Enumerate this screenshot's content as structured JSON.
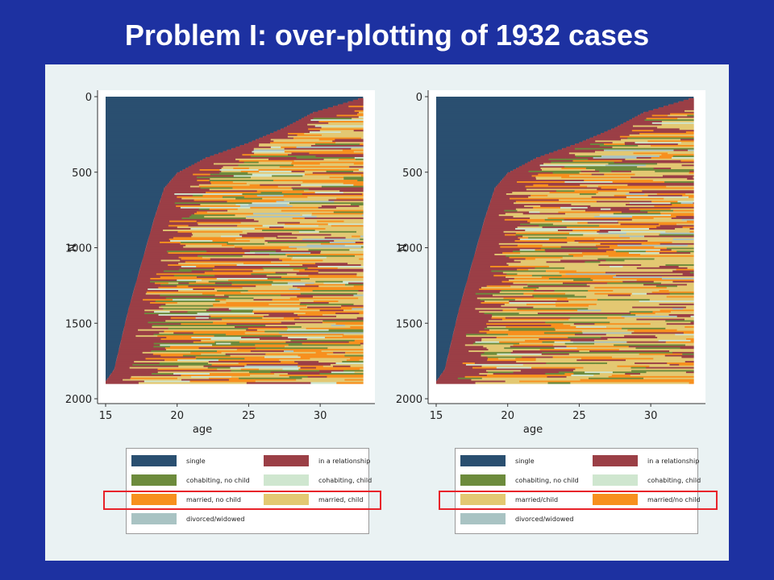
{
  "slide": {
    "title": "Problem I: over-plotting of 1932 cases"
  },
  "colors": {
    "background": "#1d31a1",
    "panel": "#eaf2f3",
    "highlight": "#e8232a",
    "single": "#2a4f70",
    "in_a_relationship": "#9b3f46",
    "cohabiting_no_child": "#6d8b3c",
    "cohabiting_child": "#cfe6cf",
    "married_no_child": "#f7901e",
    "married_child": "#e3c872",
    "divorced_widowed": "#a9c3c3"
  },
  "chart_data": [
    {
      "type": "heatmap",
      "description_of_marks": "sequence index plot",
      "xlabel": "age",
      "ylabel": "N",
      "x_ticks": [
        15,
        20,
        25,
        30
      ],
      "y_ticks": [
        0,
        500,
        1000,
        1500,
        2000
      ],
      "xlim": [
        15,
        33
      ],
      "ylim": [
        0,
        1900
      ],
      "n_cases": 1932,
      "single_boundary": {
        "y": [
          0,
          100,
          200,
          300,
          400,
          500,
          600,
          800,
          1000,
          1200,
          1400,
          1600,
          1800,
          1880
        ],
        "age_end": [
          33,
          29.5,
          27.5,
          25,
          22,
          20,
          19.1,
          18.4,
          17.8,
          17.2,
          16.6,
          16.1,
          15.6,
          15
        ]
      },
      "legend": [
        {
          "label": "single",
          "state": "single"
        },
        {
          "label": "in a relationship",
          "state": "in_a_relationship"
        },
        {
          "label": "cohabiting, no child",
          "state": "cohabiting_no_child"
        },
        {
          "label": "cohabiting, child",
          "state": "cohabiting_child"
        },
        {
          "label": "married, no child",
          "state": "married_no_child"
        },
        {
          "label": "married, child",
          "state": "married_child"
        },
        {
          "label": "divorced/widowed",
          "state": "divorced_widowed"
        }
      ]
    },
    {
      "type": "heatmap",
      "description_of_marks": "sequence index plot",
      "xlabel": "age",
      "ylabel": "N",
      "x_ticks": [
        15,
        20,
        25,
        30
      ],
      "y_ticks": [
        0,
        500,
        1000,
        1500,
        2000
      ],
      "xlim": [
        15,
        33
      ],
      "ylim": [
        0,
        1900
      ],
      "n_cases": 1932,
      "single_boundary": {
        "y": [
          0,
          100,
          200,
          300,
          400,
          500,
          600,
          800,
          1000,
          1200,
          1400,
          1600,
          1800,
          1880
        ],
        "age_end": [
          33,
          29.5,
          27.5,
          25,
          22,
          20,
          19.1,
          18.4,
          17.8,
          17.2,
          16.6,
          16.1,
          15.6,
          15
        ]
      },
      "legend": [
        {
          "label": "single",
          "state": "single"
        },
        {
          "label": "in a relationship",
          "state": "in_a_relationship"
        },
        {
          "label": "cohabiting, no child",
          "state": "cohabiting_no_child"
        },
        {
          "label": "cohabiting, child",
          "state": "cohabiting_child"
        },
        {
          "label": "married/child",
          "state": "married_child"
        },
        {
          "label": "married/no child",
          "state": "married_no_child"
        },
        {
          "label": "divorced/widowed",
          "state": "divorced_widowed"
        }
      ]
    }
  ]
}
